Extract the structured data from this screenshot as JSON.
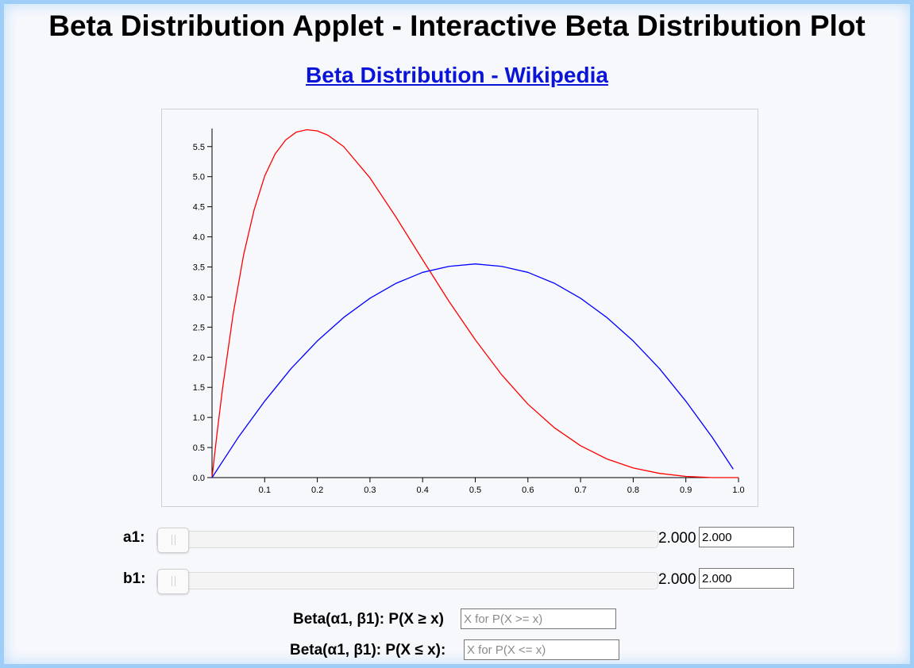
{
  "header": {
    "title": "Beta Distribution Applet - Interactive Beta Distribution Plot",
    "link_text": "Beta Distribution - Wikipedia"
  },
  "chart_data": {
    "type": "line",
    "xlim": [
      0,
      1
    ],
    "ylim": [
      0,
      5.8
    ],
    "x_ticks": [
      "0.1",
      "0.2",
      "0.3",
      "0.4",
      "0.5",
      "0.6",
      "0.7",
      "0.8",
      "0.9",
      "1.0"
    ],
    "y_ticks": [
      "0.0",
      "0.5",
      "1.0",
      "1.5",
      "2.0",
      "2.5",
      "3.0",
      "3.5",
      "4.0",
      "4.5",
      "5.0",
      "5.5"
    ],
    "series": [
      {
        "color": "#ff0000",
        "x": [
          0,
          0.01,
          0.02,
          0.04,
          0.06,
          0.08,
          0.1,
          0.12,
          0.14,
          0.16,
          0.18,
          0.2,
          0.22,
          0.25,
          0.3,
          0.35,
          0.4,
          0.45,
          0.5,
          0.55,
          0.6,
          0.65,
          0.7,
          0.75,
          0.8,
          0.85,
          0.9,
          0.95,
          1.0
        ],
        "values": [
          0,
          0.77,
          1.48,
          2.71,
          3.7,
          4.45,
          5.01,
          5.38,
          5.61,
          5.74,
          5.78,
          5.76,
          5.69,
          5.5,
          4.98,
          4.32,
          3.62,
          2.93,
          2.29,
          1.71,
          1.22,
          0.83,
          0.53,
          0.31,
          0.16,
          0.07,
          0.02,
          0.0,
          0.0
        ]
      },
      {
        "color": "#0000ff",
        "x": [
          0,
          0.05,
          0.1,
          0.15,
          0.2,
          0.25,
          0.3,
          0.35,
          0.4,
          0.45,
          0.5,
          0.55,
          0.6,
          0.65,
          0.7,
          0.75,
          0.8,
          0.85,
          0.9,
          0.95,
          0.99
        ],
        "values": [
          0,
          0.67,
          1.27,
          1.81,
          2.27,
          2.66,
          2.98,
          3.23,
          3.41,
          3.51,
          3.55,
          3.51,
          3.41,
          3.23,
          2.98,
          2.66,
          2.27,
          1.81,
          1.27,
          0.67,
          0.14
        ]
      }
    ]
  },
  "controls": {
    "a1": {
      "label": "a1:",
      "value": "2.000",
      "input_value": "2.000",
      "slider_fraction": 0.0
    },
    "b1": {
      "label": "b1:",
      "value": "2.000",
      "input_value": "2.000",
      "slider_fraction": 0.0
    }
  },
  "probability": {
    "ge_label": "Beta(α1, β1): P(X ≥ x)",
    "ge_placeholder": "X for P(X >= x)",
    "le_label": "Beta(α1, β1): P(X ≤ x):",
    "le_placeholder": "X for P(X <= x)"
  }
}
